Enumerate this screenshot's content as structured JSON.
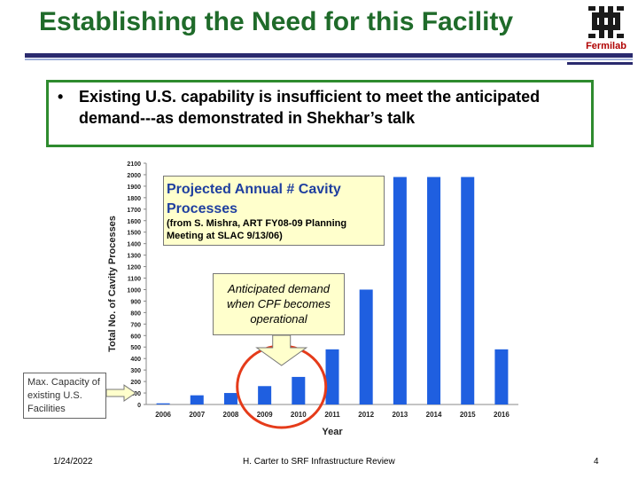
{
  "slide": {
    "title": "Establishing the Need for this Facility",
    "bullet": "Existing U.S. capability is insufficient to meet the anticipated demand---as demonstrated in Shekhar’s talk",
    "logo_text": "Fermilab",
    "footer_date": "1/24/2022",
    "footer_center": "H. Carter to SRF Infrastructure Review",
    "footer_page": "4"
  },
  "callouts": {
    "projected_title": "Projected Annual # Cavity Processes",
    "projected_source": "(from S. Mishra, ART FY08-09 Planning Meeting at SLAC 9/13/06)",
    "anticipated": "Anticipated demand when CPF becomes operational",
    "max_capacity": "Max. Capacity of existing U.S. Facilities"
  },
  "colors": {
    "title": "#1f6b2a",
    "bars": "#1f5fe0",
    "highlight_ellipse": "#e53b1a",
    "callout_fill": "#ffffcc",
    "arrow_fill": "#ffffcc"
  },
  "chart_data": {
    "type": "bar",
    "categories": [
      "2006",
      "2007",
      "2008",
      "2009",
      "2010",
      "2011",
      "2012",
      "2013",
      "2014",
      "2015",
      "2016"
    ],
    "values": [
      10,
      80,
      100,
      160,
      240,
      480,
      1000,
      1980,
      1980,
      1980,
      480
    ],
    "xlabel": "Year",
    "ylabel": "Total No. of Cavity Processes",
    "ylim": [
      0,
      2100
    ],
    "yticks": [
      0,
      100,
      200,
      300,
      400,
      500,
      600,
      700,
      800,
      900,
      1000,
      1100,
      1200,
      1300,
      1400,
      1500,
      1600,
      1700,
      1800,
      1900,
      2000,
      2100
    ],
    "highlighted_categories": [
      "2009",
      "2010"
    ],
    "grid": false,
    "legend": "none"
  }
}
